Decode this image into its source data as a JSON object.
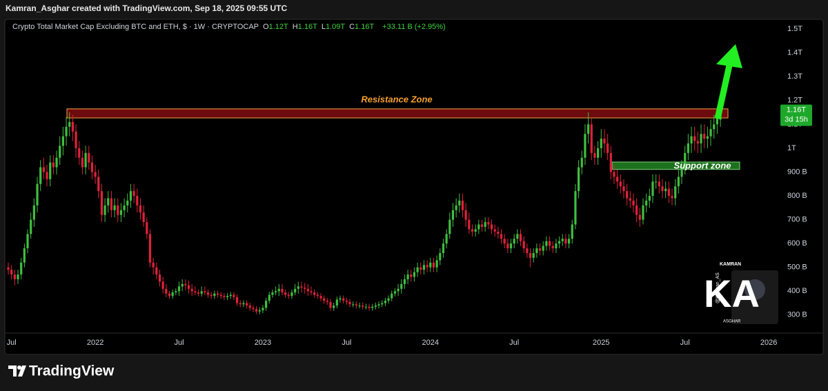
{
  "header": {
    "text": "Kamran_Asghar created with TradingView.com, Sep 18, 2025 09:55 UTC"
  },
  "chart_data": {
    "type": "candlestick",
    "title": "Crypto Total Market Cap Excluding BTC and ETH, $ · 1W · CRYPTOCAP",
    "ohlc_legend": [
      {
        "label": "O",
        "value": "1.12T"
      },
      {
        "label": "H",
        "value": "1.16T"
      },
      {
        "label": "L",
        "value": "1.09T"
      },
      {
        "label": "C",
        "value": "1.16T"
      }
    ],
    "change": "+33.11 B (+2.95%)",
    "last_price_label": "1.16T",
    "countdown": "3d 15h",
    "up_color": "#3fbf3f",
    "down_color": "#e0213a",
    "grid": false,
    "ylim": [
      233,
      1535
    ],
    "yticks": [
      {
        "value": 300,
        "label": "300 B"
      },
      {
        "value": 400,
        "label": "400 B"
      },
      {
        "value": 500,
        "label": "500 B"
      },
      {
        "value": 600,
        "label": "600 B"
      },
      {
        "value": 700,
        "label": "700 B"
      },
      {
        "value": 800,
        "label": "800 B"
      },
      {
        "value": 900,
        "label": "900 B"
      },
      {
        "value": 1000,
        "label": "1T"
      },
      {
        "value": 1100,
        "label": "1.1T"
      },
      {
        "value": 1200,
        "label": "1.2T"
      },
      {
        "value": 1300,
        "label": "1.3T"
      },
      {
        "value": 1400,
        "label": "1.4T"
      },
      {
        "value": 1500,
        "label": "1.5T"
      }
    ],
    "categories": [
      null,
      "Jul",
      null,
      null,
      null,
      null,
      null,
      null,
      null,
      null,
      null,
      null,
      null,
      null,
      null,
      null,
      null,
      null,
      null,
      null,
      null,
      null,
      null,
      null,
      null,
      null,
      null,
      "2022",
      null,
      null,
      null,
      null,
      null,
      null,
      null,
      null,
      null,
      null,
      null,
      null,
      null,
      null,
      null,
      null,
      null,
      null,
      null,
      null,
      null,
      null,
      null,
      null,
      null,
      "Jul",
      null,
      null,
      null,
      null,
      null,
      null,
      null,
      null,
      null,
      null,
      null,
      null,
      null,
      null,
      null,
      null,
      null,
      null,
      null,
      null,
      null,
      null,
      null,
      null,
      null,
      "2023",
      null,
      null,
      null,
      null,
      null,
      null,
      null,
      null,
      null,
      null,
      null,
      null,
      null,
      null,
      null,
      null,
      null,
      null,
      null,
      null,
      null,
      null,
      null,
      null,
      null,
      "Jul",
      null,
      null,
      null,
      null,
      null,
      null,
      null,
      null,
      null,
      null,
      null,
      null,
      null,
      null,
      null,
      null,
      null,
      null,
      null,
      null,
      null,
      null,
      null,
      null,
      null,
      "2024",
      null,
      null,
      null,
      null,
      null,
      null,
      null,
      null,
      null,
      null,
      null,
      null,
      null,
      null,
      null,
      null,
      null,
      null,
      null,
      null,
      null,
      null,
      null,
      null,
      null,
      "Jul",
      null,
      null,
      null,
      null,
      null,
      null,
      null,
      null,
      null,
      null,
      null,
      null,
      null,
      null,
      null,
      null,
      null,
      null,
      null,
      null,
      null,
      null,
      null,
      null,
      null,
      null,
      "2025",
      null,
      null,
      null,
      null,
      null,
      null,
      null,
      null,
      null,
      null,
      null,
      null,
      null,
      null,
      null,
      null,
      null,
      null,
      null,
      null,
      null,
      null,
      null,
      null,
      null,
      "Jul",
      null,
      null,
      null,
      null,
      null,
      null,
      null,
      null,
      null,
      null,
      null,
      null,
      null,
      null,
      null,
      null,
      null,
      null,
      null,
      null,
      null,
      null,
      null,
      null,
      null,
      "2026",
      null,
      null
    ],
    "open": [
      500,
      490,
      470,
      450,
      470,
      520,
      580,
      640,
      700,
      760,
      850,
      920,
      900,
      870,
      940,
      920,
      960,
      1010,
      1050,
      1090,
      1110,
      1070,
      1000,
      960,
      920,
      980,
      940,
      900,
      880,
      820,
      720,
      760,
      790,
      740,
      760,
      720,
      740,
      760,
      780,
      820,
      800,
      760,
      730,
      690,
      640,
      520,
      500,
      470,
      440,
      410,
      390,
      380,
      395,
      400,
      420,
      430,
      425,
      410,
      400,
      395,
      390,
      400,
      395,
      385,
      380,
      390,
      385,
      380,
      375,
      380,
      385,
      375,
      350,
      345,
      350,
      340,
      330,
      325,
      315,
      320,
      330,
      360,
      385,
      395,
      400,
      410,
      395,
      385,
      380,
      395,
      410,
      420,
      415,
      410,
      400,
      395,
      385,
      380,
      370,
      360,
      355,
      330,
      340,
      365,
      370,
      360,
      355,
      345,
      345,
      340,
      340,
      335,
      335,
      330,
      335,
      340,
      345,
      350,
      360,
      370,
      390,
      400,
      410,
      430,
      450,
      470,
      460,
      480,
      500,
      490,
      510,
      500,
      520,
      500,
      530,
      560,
      600,
      640,
      700,
      740,
      760,
      780,
      740,
      700,
      660,
      650,
      660,
      680,
      670,
      690,
      680,
      660,
      650,
      640,
      620,
      600,
      580,
      600,
      620,
      640,
      610,
      580,
      560,
      540,
      560,
      580,
      570,
      590,
      610,
      590,
      580,
      600,
      610,
      620,
      600,
      620,
      680,
      820,
      920,
      960,
      1060,
      1100,
      980,
      960,
      1000,
      1040,
      1020,
      980,
      900,
      880,
      860,
      840,
      820,
      790,
      780,
      760,
      720,
      700,
      760,
      780,
      800,
      860,
      860,
      840,
      820,
      830,
      800,
      790,
      840,
      880,
      920,
      980,
      1020,
      1050,
      1030,
      1020,
      1060,
      1040,
      1050,
      1080,
      1100,
      1120,
      null,
      null,
      null,
      null,
      null,
      null,
      null,
      null,
      null,
      null,
      null,
      null,
      null,
      null,
      null,
      null,
      null
    ],
    "high": [
      520,
      510,
      490,
      490,
      540,
      600,
      660,
      730,
      790,
      880,
      950,
      960,
      930,
      970,
      970,
      990,
      1050,
      1090,
      1130,
      1150,
      1140,
      1100,
      1030,
      990,
      1010,
      1010,
      970,
      930,
      910,
      850,
      790,
      820,
      820,
      790,
      790,
      770,
      790,
      810,
      850,
      850,
      830,
      790,
      760,
      710,
      660,
      540,
      520,
      490,
      460,
      430,
      402,
      407,
      412,
      440,
      450,
      450,
      445,
      430,
      420,
      407,
      420,
      420,
      407,
      397,
      402,
      402,
      397,
      392,
      392,
      397,
      397,
      387,
      362,
      362,
      362,
      352,
      342,
      337,
      332,
      342,
      372,
      397,
      407,
      420,
      430,
      430,
      407,
      397,
      407,
      430,
      440,
      440,
      435,
      430,
      420,
      407,
      397,
      392,
      382,
      372,
      367,
      352,
      377,
      382,
      382,
      372,
      367,
      357,
      357,
      352,
      352,
      347,
      347,
      347,
      352,
      357,
      362,
      372,
      382,
      402,
      412,
      430,
      450,
      470,
      490,
      490,
      500,
      520,
      520,
      530,
      530,
      540,
      540,
      550,
      580,
      620,
      660,
      730,
      770,
      790,
      810,
      810,
      770,
      730,
      680,
      680,
      700,
      700,
      710,
      710,
      700,
      680,
      670,
      660,
      640,
      620,
      620,
      640,
      660,
      660,
      630,
      600,
      580,
      580,
      600,
      600,
      610,
      630,
      630,
      610,
      620,
      630,
      640,
      640,
      640,
      700,
      850,
      950,
      990,
      1100,
      1150,
      1130,
      1010,
      1030,
      1080,
      1080,
      1060,
      1010,
      930,
      910,
      890,
      870,
      850,
      820,
      810,
      790,
      750,
      790,
      810,
      830,
      890,
      890,
      890,
      870,
      860,
      860,
      830,
      870,
      910,
      950,
      1010,
      1060,
      1090,
      1090,
      1070,
      1100,
      1100,
      1090,
      1120,
      1140,
      1160,
      1160,
      null,
      null,
      null,
      null,
      null,
      null,
      null,
      null,
      null,
      null,
      null,
      null,
      null,
      null,
      null,
      null,
      null
    ],
    "low": [
      470,
      450,
      425,
      430,
      450,
      500,
      560,
      620,
      670,
      730,
      820,
      870,
      840,
      840,
      890,
      890,
      930,
      970,
      1010,
      1050,
      1030,
      960,
      930,
      890,
      890,
      910,
      870,
      850,
      790,
      690,
      690,
      730,
      710,
      710,
      690,
      690,
      710,
      730,
      750,
      770,
      730,
      700,
      670,
      620,
      500,
      470,
      450,
      420,
      390,
      375,
      368,
      368,
      383,
      380,
      400,
      405,
      390,
      380,
      383,
      378,
      378,
      383,
      373,
      368,
      368,
      373,
      368,
      363,
      363,
      368,
      363,
      338,
      333,
      333,
      328,
      318,
      313,
      303,
      303,
      308,
      318,
      348,
      373,
      383,
      380,
      383,
      373,
      368,
      368,
      383,
      390,
      395,
      390,
      380,
      383,
      373,
      368,
      358,
      348,
      343,
      318,
      318,
      328,
      353,
      348,
      343,
      333,
      333,
      328,
      328,
      323,
      323,
      318,
      318,
      323,
      328,
      333,
      338,
      348,
      358,
      378,
      380,
      390,
      410,
      430,
      440,
      440,
      460,
      470,
      470,
      480,
      480,
      480,
      480,
      510,
      540,
      580,
      620,
      670,
      710,
      730,
      710,
      670,
      640,
      630,
      630,
      640,
      650,
      650,
      660,
      640,
      630,
      620,
      600,
      580,
      560,
      560,
      580,
      600,
      590,
      560,
      540,
      500,
      520,
      540,
      550,
      550,
      570,
      570,
      560,
      560,
      580,
      590,
      580,
      580,
      600,
      660,
      790,
      890,
      930,
      1020,
      950,
      930,
      930,
      960,
      980,
      950,
      870,
      850,
      830,
      810,
      790,
      760,
      750,
      730,
      690,
      670,
      680,
      730,
      750,
      770,
      830,
      810,
      790,
      790,
      770,
      760,
      760,
      810,
      850,
      890,
      950,
      980,
      990,
      980,
      980,
      1000,
      1000,
      1010,
      1040,
      1060,
      1090,
      null,
      null,
      null,
      null,
      null,
      null,
      null,
      null,
      null,
      null,
      null,
      null,
      null,
      null,
      null,
      null,
      null
    ],
    "close": [
      490,
      470,
      450,
      470,
      520,
      580,
      640,
      700,
      760,
      850,
      920,
      900,
      870,
      940,
      920,
      960,
      1010,
      1050,
      1090,
      1110,
      1070,
      1000,
      960,
      920,
      980,
      940,
      900,
      880,
      820,
      720,
      760,
      790,
      740,
      760,
      720,
      740,
      760,
      780,
      820,
      800,
      760,
      730,
      690,
      640,
      520,
      500,
      470,
      440,
      410,
      390,
      380,
      395,
      400,
      420,
      430,
      425,
      410,
      400,
      395,
      390,
      400,
      395,
      385,
      380,
      390,
      385,
      380,
      375,
      380,
      385,
      375,
      350,
      345,
      350,
      340,
      330,
      325,
      315,
      320,
      330,
      360,
      385,
      395,
      400,
      410,
      395,
      385,
      380,
      395,
      410,
      420,
      415,
      410,
      400,
      395,
      385,
      380,
      370,
      360,
      355,
      330,
      340,
      365,
      370,
      360,
      355,
      345,
      345,
      340,
      340,
      335,
      335,
      330,
      335,
      340,
      345,
      350,
      360,
      370,
      390,
      400,
      410,
      430,
      450,
      470,
      460,
      480,
      500,
      490,
      510,
      500,
      520,
      500,
      530,
      560,
      600,
      640,
      700,
      740,
      760,
      780,
      740,
      700,
      660,
      650,
      660,
      680,
      670,
      690,
      680,
      660,
      650,
      640,
      620,
      600,
      580,
      600,
      620,
      640,
      610,
      580,
      560,
      540,
      560,
      580,
      570,
      590,
      610,
      590,
      580,
      600,
      610,
      620,
      600,
      620,
      680,
      820,
      920,
      960,
      1060,
      1100,
      980,
      960,
      1000,
      1040,
      1020,
      980,
      900,
      880,
      860,
      840,
      820,
      790,
      780,
      760,
      720,
      700,
      760,
      780,
      800,
      860,
      860,
      840,
      820,
      830,
      800,
      790,
      840,
      880,
      920,
      980,
      1020,
      1050,
      1030,
      1020,
      1060,
      1040,
      1050,
      1080,
      1100,
      1127,
      1160,
      null,
      null,
      null,
      null,
      null,
      null,
      null,
      null,
      null,
      null,
      null,
      null,
      null,
      null,
      null,
      null,
      null
    ],
    "zones": [
      {
        "label": "Resistance Zone",
        "range": [
          1127,
          1165
        ],
        "color": "#7a0c10",
        "border": "#f0a040",
        "label_color": "#f5a030"
      },
      {
        "label": "Support zone",
        "range": [
          911,
          942
        ],
        "color": "#1f7d1f",
        "border": "#7ed07e",
        "label_color": "#ffffff"
      }
    ]
  },
  "watermark": {
    "top": "KAMRAN",
    "initials": "KA",
    "handle": "@Kamran_AS",
    "bottom": "ASGHAR"
  },
  "footer": {
    "brand": "TradingView"
  }
}
